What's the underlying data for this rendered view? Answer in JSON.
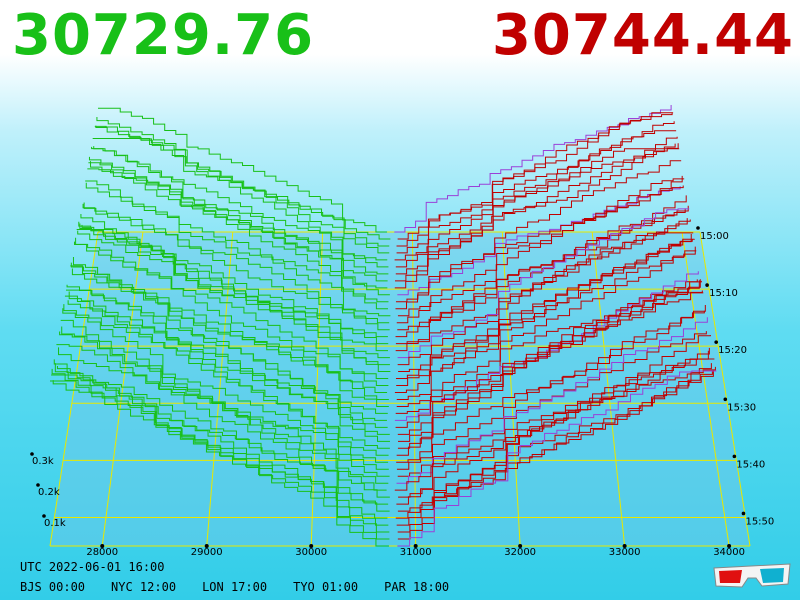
{
  "header": {
    "bid_price": "30729.76",
    "ask_price": "30744.44",
    "bid_color": "#18c018",
    "ask_color": "#c00000"
  },
  "chart_data": {
    "type": "area",
    "x_axis": {
      "tick_labels": [
        "28000",
        "29000",
        "30000",
        "31000",
        "32000",
        "33000",
        "34000"
      ],
      "values": [
        28000,
        29000,
        30000,
        31000,
        32000,
        33000,
        34000
      ]
    },
    "volume_axis": {
      "tick_labels": [
        "0.1k",
        "0.2k",
        "0.3k"
      ],
      "values": [
        100,
        200,
        300
      ]
    },
    "time_axis": {
      "tick_labels": [
        "15:00",
        "15:10",
        "15:20",
        "15:30",
        "15:40",
        "15:50"
      ]
    },
    "bid_price": 30729.76,
    "ask_price": 30744.44,
    "series": [
      {
        "name": "bids",
        "color": "#18c018",
        "side": "bid"
      },
      {
        "name": "asks",
        "color": "#c00000",
        "side": "ask"
      }
    ],
    "grid": true
  },
  "footer": {
    "utc": "UTC 2022-06-01 16:00",
    "bjs": "BJS 00:00",
    "nyc": "NYC 12:00",
    "lon": "LON 17:00",
    "tyo": "TYO 01:00",
    "par": "PAR 18:00"
  },
  "icons": {
    "glasses": "3d-glasses-icon"
  }
}
